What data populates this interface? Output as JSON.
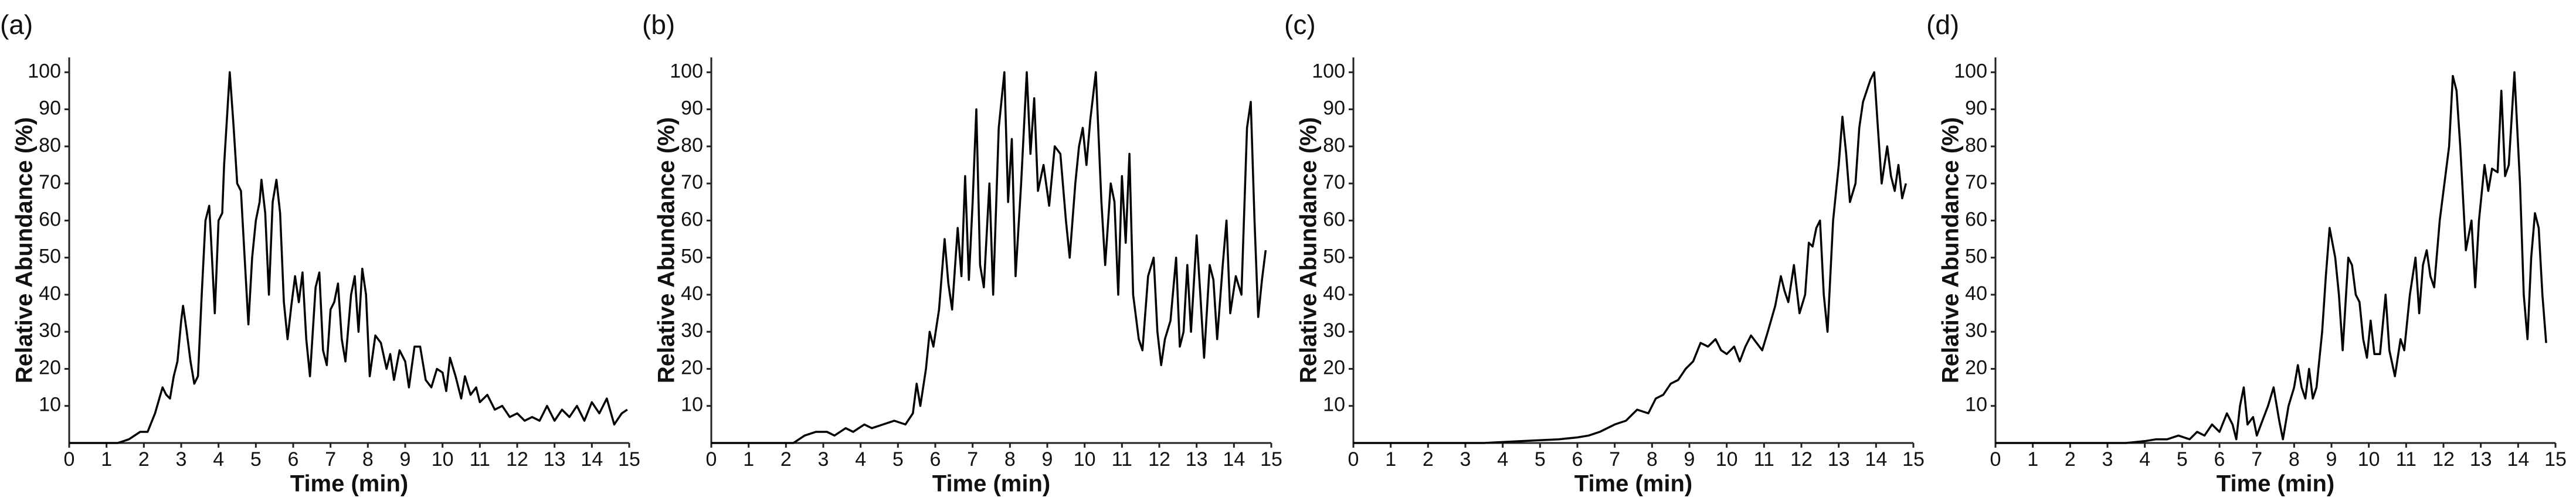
{
  "chart_data": [
    {
      "type": "line",
      "panel_label": "(a)",
      "x_label": "Time (min)",
      "y_label": "Relative Abundance (%)",
      "color": "#000000",
      "xlim": [
        0,
        15
      ],
      "ylim": [
        0,
        104
      ],
      "xticks": [
        0,
        1,
        2,
        3,
        4,
        5,
        6,
        7,
        8,
        9,
        10,
        11,
        12,
        13,
        14,
        15
      ],
      "yticks": [
        10,
        20,
        30,
        40,
        50,
        60,
        70,
        80,
        90,
        100
      ],
      "x": [
        0,
        1.3,
        1.6,
        1.9,
        2.1,
        2.3,
        2.5,
        2.6,
        2.7,
        2.8,
        2.9,
        3,
        3.05,
        3.15,
        3.25,
        3.35,
        3.45,
        3.55,
        3.65,
        3.75,
        3.8,
        3.9,
        4,
        4.1,
        4.15,
        4.3,
        4.4,
        4.5,
        4.6,
        4.7,
        4.8,
        4.9,
        5,
        5.1,
        5.15,
        5.25,
        5.35,
        5.45,
        5.55,
        5.65,
        5.75,
        5.85,
        5.95,
        6.05,
        6.15,
        6.25,
        6.35,
        6.45,
        6.6,
        6.7,
        6.8,
        6.9,
        7,
        7.1,
        7.2,
        7.3,
        7.4,
        7.55,
        7.65,
        7.75,
        7.85,
        7.95,
        8.05,
        8.2,
        8.35,
        8.5,
        8.6,
        8.7,
        8.85,
        9,
        9.1,
        9.25,
        9.4,
        9.55,
        9.7,
        9.85,
        10,
        10.1,
        10.2,
        10.35,
        10.5,
        10.6,
        10.75,
        10.9,
        11,
        11.2,
        11.4,
        11.6,
        11.8,
        12,
        12.2,
        12.4,
        12.6,
        12.8,
        13,
        13.2,
        13.4,
        13.6,
        13.8,
        14,
        14.2,
        14.4,
        14.6,
        14.8,
        14.95
      ],
      "values": [
        0,
        0,
        1,
        3,
        3,
        8,
        15,
        13,
        12,
        18,
        22,
        33,
        37,
        30,
        22,
        16,
        18,
        40,
        60,
        64,
        55,
        35,
        60,
        62,
        75,
        100,
        86,
        70,
        68,
        50,
        32,
        50,
        60,
        65,
        71,
        62,
        40,
        65,
        71,
        62,
        38,
        28,
        37,
        45,
        38,
        46,
        28,
        18,
        42,
        46,
        25,
        21,
        36,
        38,
        43,
        28,
        22,
        40,
        45,
        30,
        47,
        40,
        18,
        29,
        27,
        20,
        24,
        17,
        25,
        22,
        15,
        26,
        26,
        17,
        15,
        20,
        19,
        14,
        23,
        18,
        12,
        18,
        13,
        15,
        11,
        13,
        9,
        10,
        7,
        8,
        6,
        7,
        6,
        10,
        6,
        9,
        7,
        10,
        6,
        11,
        8,
        12,
        5,
        8,
        9
      ]
    },
    {
      "type": "line",
      "panel_label": "(b)",
      "x_label": "Time (min)",
      "y_label": "Relative Abundance (%)",
      "color": "#000000",
      "xlim": [
        0,
        15
      ],
      "ylim": [
        0,
        104
      ],
      "xticks": [
        0,
        1,
        2,
        3,
        4,
        5,
        6,
        7,
        8,
        9,
        10,
        11,
        12,
        13,
        14,
        15
      ],
      "yticks": [
        10,
        20,
        30,
        40,
        50,
        60,
        70,
        80,
        90,
        100
      ],
      "x": [
        0,
        2.2,
        2.5,
        2.8,
        3.1,
        3.3,
        3.6,
        3.8,
        4.1,
        4.3,
        4.6,
        4.9,
        5.2,
        5.4,
        5.5,
        5.6,
        5.75,
        5.85,
        5.95,
        6.1,
        6.25,
        6.35,
        6.45,
        6.6,
        6.7,
        6.8,
        6.9,
        7,
        7.1,
        7.2,
        7.3,
        7.45,
        7.55,
        7.7,
        7.85,
        7.95,
        8.05,
        8.15,
        8.3,
        8.45,
        8.55,
        8.65,
        8.75,
        8.9,
        9.05,
        9.2,
        9.35,
        9.5,
        9.6,
        9.75,
        9.85,
        9.95,
        10.05,
        10.15,
        10.3,
        10.45,
        10.55,
        10.7,
        10.8,
        10.9,
        11,
        11.1,
        11.2,
        11.3,
        11.45,
        11.55,
        11.7,
        11.85,
        11.95,
        12.05,
        12.15,
        12.3,
        12.45,
        12.55,
        12.65,
        12.75,
        12.85,
        13,
        13.1,
        13.2,
        13.35,
        13.45,
        13.55,
        13.7,
        13.8,
        13.9,
        14.05,
        14.2,
        14.35,
        14.45,
        14.55,
        14.65,
        14.75,
        14.85
      ],
      "values": [
        0,
        0,
        2,
        3,
        3,
        2,
        4,
        3,
        5,
        4,
        5,
        6,
        5,
        8,
        16,
        10,
        20,
        30,
        26,
        36,
        55,
        43,
        36,
        58,
        45,
        72,
        44,
        65,
        90,
        48,
        42,
        70,
        40,
        85,
        100,
        65,
        82,
        45,
        70,
        100,
        78,
        93,
        68,
        75,
        64,
        80,
        78,
        60,
        50,
        70,
        80,
        85,
        75,
        87,
        100,
        65,
        48,
        70,
        65,
        40,
        72,
        54,
        78,
        40,
        28,
        25,
        45,
        50,
        30,
        21,
        28,
        33,
        50,
        26,
        30,
        48,
        30,
        56,
        40,
        23,
        48,
        44,
        28,
        48,
        60,
        35,
        45,
        40,
        85,
        92,
        60,
        34,
        44,
        52
      ]
    },
    {
      "type": "line",
      "panel_label": "(c)",
      "x_label": "Time (min)",
      "y_label": "Relative Abundance (%)",
      "color": "#000000",
      "xlim": [
        0,
        15
      ],
      "ylim": [
        0,
        104
      ],
      "xticks": [
        0,
        1,
        2,
        3,
        4,
        5,
        6,
        7,
        8,
        9,
        10,
        11,
        12,
        13,
        14,
        15
      ],
      "yticks": [
        10,
        20,
        30,
        40,
        50,
        60,
        70,
        80,
        90,
        100
      ],
      "x": [
        0,
        3.5,
        4.5,
        5.5,
        6,
        6.3,
        6.6,
        7,
        7.3,
        7.6,
        7.9,
        8.1,
        8.3,
        8.5,
        8.7,
        8.9,
        9.1,
        9.3,
        9.5,
        9.7,
        9.85,
        10,
        10.2,
        10.35,
        10.5,
        10.65,
        10.8,
        10.95,
        11.1,
        11.3,
        11.45,
        11.55,
        11.65,
        11.8,
        11.95,
        12.1,
        12.2,
        12.3,
        12.4,
        12.5,
        12.6,
        12.7,
        12.85,
        13,
        13.1,
        13.2,
        13.3,
        13.45,
        13.55,
        13.65,
        13.75,
        13.85,
        13.95,
        14.05,
        14.15,
        14.3,
        14.4,
        14.5,
        14.6,
        14.7,
        14.8
      ],
      "values": [
        0,
        0,
        0.5,
        1,
        1.5,
        2,
        3,
        5,
        6,
        9,
        8,
        12,
        13,
        16,
        17,
        20,
        22,
        27,
        26,
        28,
        25,
        24,
        26,
        22,
        26,
        29,
        27,
        25,
        30,
        37,
        45,
        41,
        38,
        48,
        35,
        40,
        54,
        53,
        58,
        60,
        40,
        30,
        60,
        75,
        88,
        78,
        65,
        70,
        85,
        92,
        95,
        98,
        100,
        85,
        70,
        80,
        72,
        68,
        75,
        66,
        70
      ]
    },
    {
      "type": "line",
      "panel_label": "(d)",
      "x_label": "Time (min)",
      "y_label": "Relative Abundance (%)",
      "color": "#000000",
      "xlim": [
        0,
        15
      ],
      "ylim": [
        0,
        104
      ],
      "xticks": [
        0,
        1,
        2,
        3,
        4,
        5,
        6,
        7,
        8,
        9,
        10,
        11,
        12,
        13,
        14,
        15
      ],
      "yticks": [
        10,
        20,
        30,
        40,
        50,
        60,
        70,
        80,
        90,
        100
      ],
      "x": [
        0,
        3.5,
        4,
        4.3,
        4.6,
        4.9,
        5.2,
        5.4,
        5.6,
        5.8,
        6,
        6.2,
        6.35,
        6.45,
        6.55,
        6.65,
        6.75,
        6.9,
        7,
        7.15,
        7.3,
        7.45,
        7.6,
        7.7,
        7.85,
        8,
        8.1,
        8.2,
        8.3,
        8.4,
        8.5,
        8.6,
        8.75,
        8.85,
        8.95,
        9.1,
        9.2,
        9.3,
        9.45,
        9.55,
        9.65,
        9.75,
        9.85,
        9.95,
        10.05,
        10.15,
        10.3,
        10.45,
        10.55,
        10.7,
        10.85,
        10.95,
        11.1,
        11.25,
        11.35,
        11.45,
        11.55,
        11.65,
        11.75,
        11.9,
        12.05,
        12.15,
        12.25,
        12.35,
        12.45,
        12.6,
        12.75,
        12.85,
        12.95,
        13.1,
        13.2,
        13.3,
        13.45,
        13.55,
        13.65,
        13.75,
        13.9,
        14.05,
        14.15,
        14.25,
        14.35,
        14.45,
        14.55,
        14.65,
        14.75
      ],
      "values": [
        0,
        0,
        0.5,
        1,
        1,
        2,
        1,
        3,
        2,
        5,
        3,
        8,
        5,
        1,
        10,
        15,
        5,
        7,
        2,
        6,
        10,
        15,
        6,
        1,
        10,
        15,
        21,
        15,
        12,
        20,
        12,
        15,
        30,
        45,
        58,
        50,
        40,
        25,
        50,
        48,
        40,
        38,
        28,
        23,
        33,
        24,
        24,
        40,
        25,
        18,
        28,
        25,
        40,
        50,
        35,
        48,
        52,
        45,
        42,
        60,
        72,
        80,
        99,
        95,
        80,
        52,
        60,
        42,
        60,
        75,
        68,
        74,
        73,
        95,
        72,
        75,
        100,
        70,
        40,
        28,
        50,
        62,
        58,
        40,
        27
      ]
    }
  ]
}
